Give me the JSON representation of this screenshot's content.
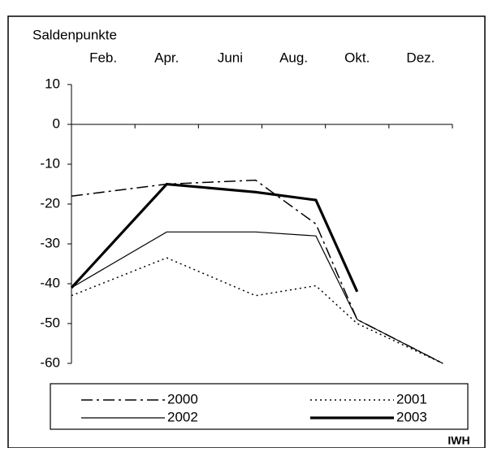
{
  "chart_data": {
    "type": "line",
    "y_title": "Saldenpunkte",
    "x": [
      0,
      3,
      5.8,
      7.7,
      9,
      11.7
    ],
    "xlim": [
      0,
      12
    ],
    "xticks": [
      {
        "value": 1,
        "label": "Feb."
      },
      {
        "value": 3,
        "label": "Apr."
      },
      {
        "value": 5,
        "label": "Juni"
      },
      {
        "value": 7,
        "label": "Aug."
      },
      {
        "value": 9,
        "label": "Okt."
      },
      {
        "value": 11,
        "label": "Dez."
      }
    ],
    "x_tick_marks": [
      0,
      2,
      4,
      6,
      8,
      10,
      12
    ],
    "ylim": [
      10,
      -60
    ],
    "yticks": [
      10,
      0,
      -10,
      -20,
      -30,
      -40,
      -50,
      -60
    ],
    "series": [
      {
        "name": "2000",
        "color": "#000000",
        "dash": "14 5 3 5",
        "width": 1.5,
        "values": [
          -18,
          -15,
          -14,
          -25,
          -49,
          -60
        ]
      },
      {
        "name": "2001",
        "color": "#000000",
        "dash": "2 4",
        "width": 1.5,
        "values": [
          -43,
          -33.5,
          -43,
          -40.5,
          -50,
          -60
        ]
      },
      {
        "name": "2002",
        "color": "#000000",
        "dash": "",
        "width": 1.2,
        "values": [
          -41,
          -27,
          -27,
          -28,
          -49,
          -60
        ]
      },
      {
        "name": "2003",
        "color": "#000000",
        "dash": "",
        "width": 3.2,
        "values": [
          -41,
          -15,
          -17,
          -19,
          -42,
          null
        ]
      }
    ],
    "source": "IWH"
  }
}
